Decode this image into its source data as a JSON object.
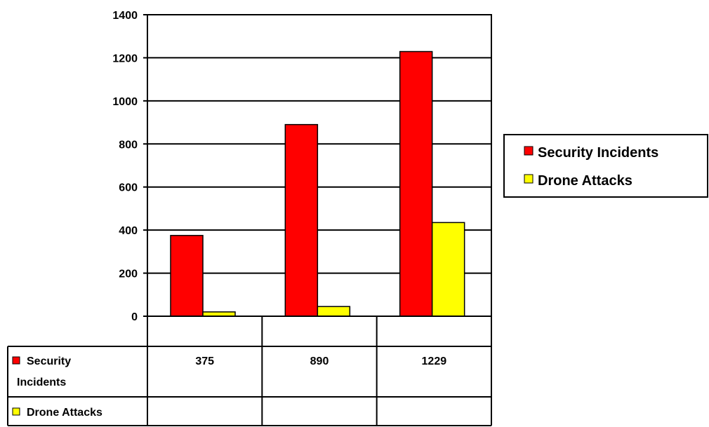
{
  "chart_data": {
    "type": "bar",
    "categories": [
      "",
      "",
      ""
    ],
    "series": [
      {
        "name": "Security Incidents",
        "values": [
          375,
          890,
          1229
        ],
        "color": "#ff0000"
      },
      {
        "name": "Drone Attacks",
        "values": [
          20,
          45,
          435
        ],
        "color": "#ffff00"
      }
    ],
    "ylim": [
      0,
      1400
    ],
    "yticks": [
      "0",
      "200",
      "400",
      "600",
      "800",
      "1000",
      "1200",
      "1400"
    ],
    "grid": true,
    "legend": "right",
    "data_table": {
      "rows": [
        {
          "label_lines": [
            "Security",
            "Incidents"
          ],
          "cells": [
            "375",
            "890",
            "1229"
          ]
        },
        {
          "label_lines": [
            "Drone Attacks"
          ],
          "cells": [
            "",
            "",
            ""
          ]
        }
      ]
    }
  }
}
